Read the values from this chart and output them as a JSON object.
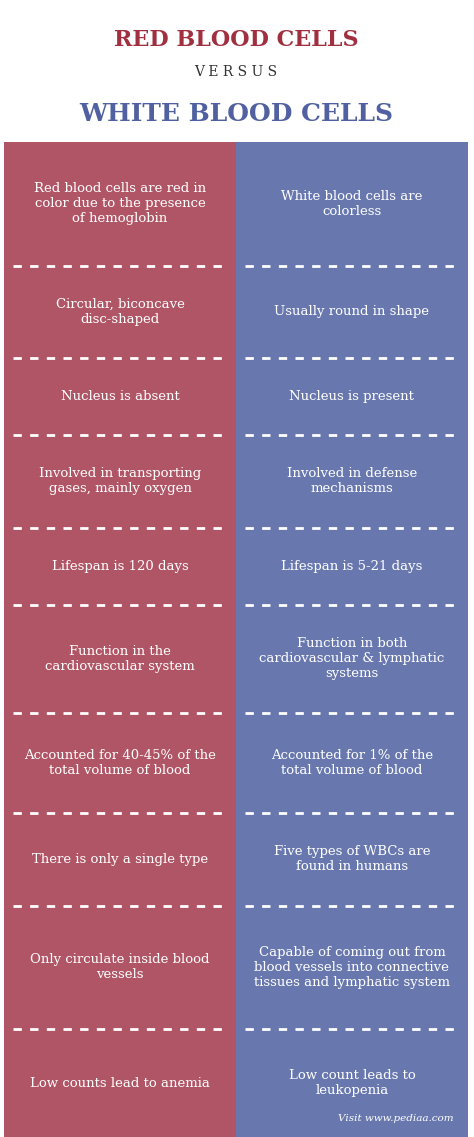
{
  "title_rbc": "RED BLOOD CELLS",
  "title_versus": "V E R S U S",
  "title_wbc": "WHITE BLOOD CELLS",
  "rbc_color": "#b05565",
  "wbc_color": "#6878ae",
  "text_color": "#ffffff",
  "title_rbc_color": "#a03040",
  "title_wbc_color": "#5060a0",
  "versus_color": "#333333",
  "background_color": "#ffffff",
  "footer_text": "Visit www.pediaa.com",
  "rows": [
    {
      "rbc": "Red blood cells are red in\ncolor due to the presence\nof hemoglobin",
      "wbc": "White blood cells are\ncolorless"
    },
    {
      "rbc": "Circular, biconcave\ndisc-shaped",
      "wbc": "Usually round in shape"
    },
    {
      "rbc": "Nucleus is absent",
      "wbc": "Nucleus is present"
    },
    {
      "rbc": "Involved in transporting\ngases, mainly oxygen",
      "wbc": "Involved in defense\nmechanisms"
    },
    {
      "rbc": "Lifespan is 120 days",
      "wbc": "Lifespan is 5-21 days"
    },
    {
      "rbc": "Function in the\ncardiovascular system",
      "wbc": "Function in both\ncardiovascular & lymphatic\nsystems"
    },
    {
      "rbc": "Accounted for 40-45% of the\ntotal volume of blood",
      "wbc": "Accounted for 1% of the\ntotal volume of blood"
    },
    {
      "rbc": "There is only a single type",
      "wbc": "Five types of WBCs are\nfound in humans"
    },
    {
      "rbc": "Only circulate inside blood\nvessels",
      "wbc": "Capable of coming out from\nblood vessels into connective\ntissues and lymphatic system"
    },
    {
      "rbc": "Low counts lead to anemia",
      "wbc": "Low count leads to\nleukopenia"
    }
  ],
  "row_weights": [
    3.2,
    2.4,
    2.0,
    2.4,
    2.0,
    2.8,
    2.6,
    2.4,
    3.2,
    2.8
  ]
}
